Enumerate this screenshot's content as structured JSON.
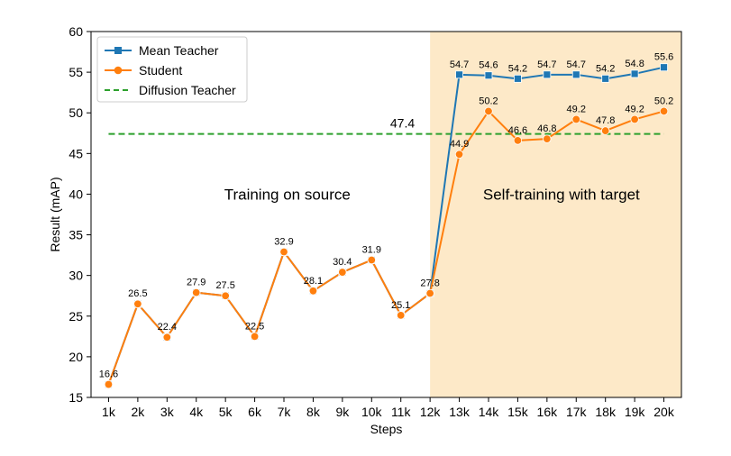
{
  "chart_data": {
    "type": "line",
    "xlabel": "Steps",
    "ylabel": "Result (mAP)",
    "ylim": [
      15,
      60
    ],
    "yticks": [
      15,
      20,
      25,
      30,
      35,
      40,
      45,
      50,
      55,
      60
    ],
    "categories": [
      "1k",
      "2k",
      "3k",
      "4k",
      "5k",
      "6k",
      "7k",
      "8k",
      "9k",
      "10k",
      "11k",
      "12k",
      "13k",
      "14k",
      "15k",
      "16k",
      "17k",
      "18k",
      "19k",
      "20k"
    ],
    "series": [
      {
        "name": "Mean Teacher",
        "color": "#1f77b4",
        "marker": "square",
        "values": [
          16.6,
          26.5,
          22.4,
          27.9,
          27.5,
          22.5,
          32.9,
          28.1,
          30.4,
          31.9,
          25.1,
          27.8,
          54.7,
          54.6,
          54.2,
          54.7,
          54.7,
          54.2,
          54.8,
          55.6
        ],
        "labels": [
          "",
          "",
          "",
          "",
          "",
          "",
          "",
          "",
          "",
          "",
          "",
          "",
          "54.7",
          "54.6",
          "54.2",
          "54.7",
          "54.7",
          "54.2",
          "54.8",
          "55.6"
        ]
      },
      {
        "name": "Student",
        "color": "#ff7f0e",
        "marker": "circle",
        "values": [
          16.6,
          26.5,
          22.4,
          27.9,
          27.5,
          22.5,
          32.9,
          28.1,
          30.4,
          31.9,
          25.1,
          27.8,
          44.9,
          50.2,
          46.6,
          46.8,
          49.2,
          47.8,
          49.2,
          50.2
        ],
        "labels": [
          "16.6",
          "26.5",
          "22.4",
          "27.9",
          "27.5",
          "22.5",
          "32.9",
          "28.1",
          "30.4",
          "31.9",
          "25.1",
          "27.8",
          "44.9",
          "50.2",
          "46.6",
          "46.8",
          "49.2",
          "47.8",
          "49.2",
          "50.2"
        ]
      }
    ],
    "reference_line": {
      "name": "Diffusion Teacher",
      "value": 47.4,
      "label": "47.4",
      "color": "#2ca02c",
      "style": "dashed"
    },
    "shaded_region": {
      "from": "12k",
      "to": "20k",
      "color": "#fde9c8"
    },
    "annotations": {
      "left_region": "Training on source",
      "right_region": "Self-training with target"
    },
    "legend": {
      "placement": "top-left",
      "entries": [
        "Mean Teacher",
        "Student",
        "Diffusion Teacher"
      ]
    },
    "grid": false
  }
}
